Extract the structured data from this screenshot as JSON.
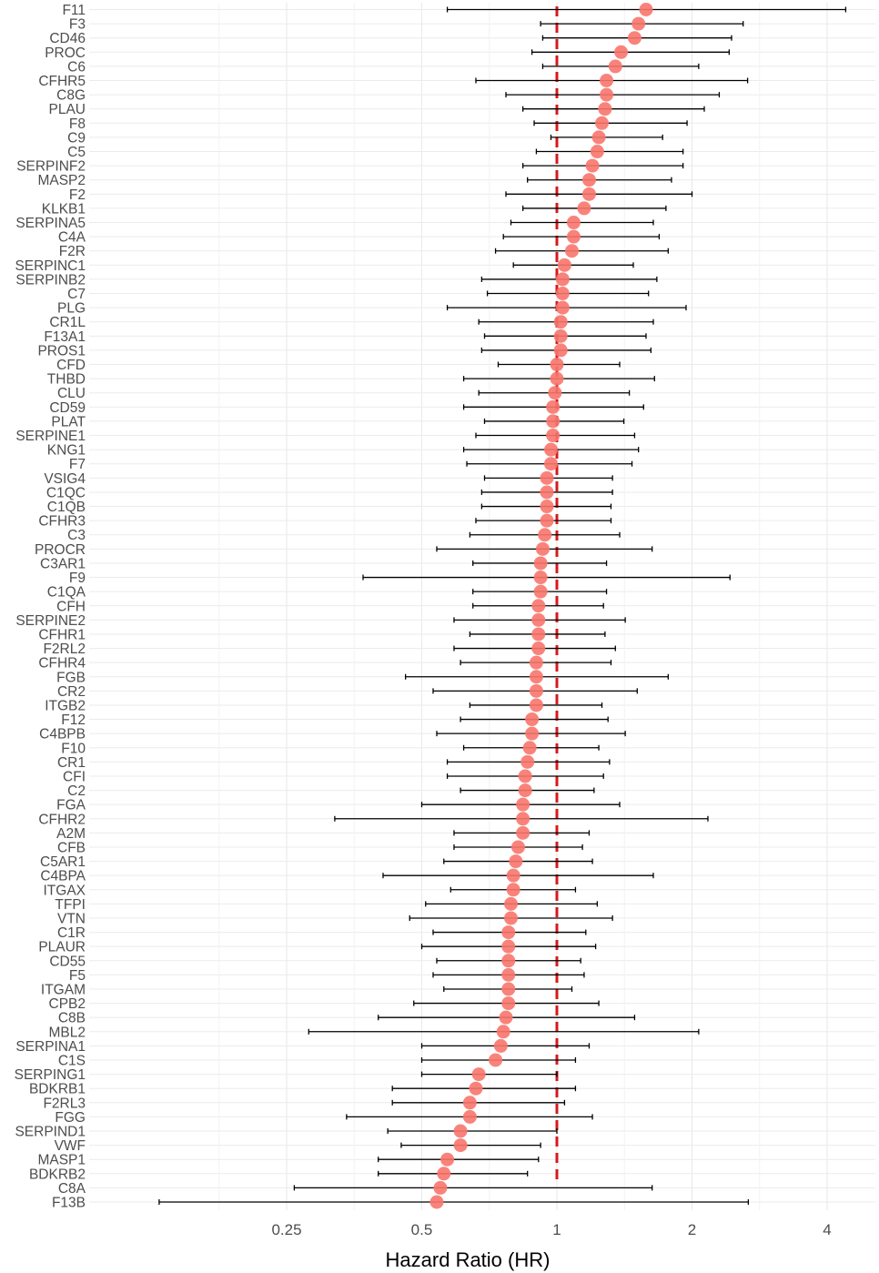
{
  "chart_data": {
    "type": "forest",
    "xlabel": "Hazard Ratio (HR)",
    "x_scale": "log2",
    "xlim": [
      0.11,
      5.2
    ],
    "x_ticks": [
      0.25,
      0.5,
      1,
      2,
      4
    ],
    "x_tick_labels": [
      "0.25",
      "0.5",
      "1",
      "2",
      "4"
    ],
    "reference_line": 1,
    "grid": true,
    "colors": {
      "point": "#F8766D",
      "reference": "#D7191C",
      "errorbar": "#000000",
      "grid": "#EBEBEB"
    },
    "rows": [
      {
        "label": "F11",
        "hr": 1.58,
        "lower": 0.57,
        "upper": 4.4
      },
      {
        "label": "F3",
        "hr": 1.52,
        "lower": 0.92,
        "upper": 2.6
      },
      {
        "label": "CD46",
        "hr": 1.49,
        "lower": 0.93,
        "upper": 2.45
      },
      {
        "label": "PROC",
        "hr": 1.39,
        "lower": 0.88,
        "upper": 2.42
      },
      {
        "label": "C6",
        "hr": 1.35,
        "lower": 0.93,
        "upper": 2.07
      },
      {
        "label": "CFHR5",
        "hr": 1.29,
        "lower": 0.66,
        "upper": 2.66
      },
      {
        "label": "C8G",
        "hr": 1.29,
        "lower": 0.77,
        "upper": 2.3
      },
      {
        "label": "PLAU",
        "hr": 1.28,
        "lower": 0.84,
        "upper": 2.13
      },
      {
        "label": "F8",
        "hr": 1.26,
        "lower": 0.89,
        "upper": 1.95
      },
      {
        "label": "C9",
        "hr": 1.24,
        "lower": 0.97,
        "upper": 1.72
      },
      {
        "label": "C5",
        "hr": 1.23,
        "lower": 0.9,
        "upper": 1.91
      },
      {
        "label": "SERPINF2",
        "hr": 1.2,
        "lower": 0.84,
        "upper": 1.91
      },
      {
        "label": "MASP2",
        "hr": 1.18,
        "lower": 0.86,
        "upper": 1.8
      },
      {
        "label": "F2",
        "hr": 1.18,
        "lower": 0.77,
        "upper": 2.0
      },
      {
        "label": "KLKB1",
        "hr": 1.15,
        "lower": 0.84,
        "upper": 1.75
      },
      {
        "label": "SERPINA5",
        "hr": 1.09,
        "lower": 0.79,
        "upper": 1.64
      },
      {
        "label": "C4A",
        "hr": 1.09,
        "lower": 0.76,
        "upper": 1.69
      },
      {
        "label": "F2R",
        "hr": 1.08,
        "lower": 0.73,
        "upper": 1.77
      },
      {
        "label": "SERPINC1",
        "hr": 1.04,
        "lower": 0.8,
        "upper": 1.48
      },
      {
        "label": "SERPINB2",
        "hr": 1.03,
        "lower": 0.68,
        "upper": 1.67
      },
      {
        "label": "C7",
        "hr": 1.03,
        "lower": 0.7,
        "upper": 1.6
      },
      {
        "label": "PLG",
        "hr": 1.03,
        "lower": 0.57,
        "upper": 1.94
      },
      {
        "label": "CR1L",
        "hr": 1.02,
        "lower": 0.67,
        "upper": 1.64
      },
      {
        "label": "F13A1",
        "hr": 1.02,
        "lower": 0.69,
        "upper": 1.58
      },
      {
        "label": "PROS1",
        "hr": 1.02,
        "lower": 0.68,
        "upper": 1.62
      },
      {
        "label": "CFD",
        "hr": 1.0,
        "lower": 0.74,
        "upper": 1.38
      },
      {
        "label": "THBD",
        "hr": 1.0,
        "lower": 0.62,
        "upper": 1.65
      },
      {
        "label": "CLU",
        "hr": 0.99,
        "lower": 0.67,
        "upper": 1.45
      },
      {
        "label": "CD59",
        "hr": 0.98,
        "lower": 0.62,
        "upper": 1.56
      },
      {
        "label": "PLAT",
        "hr": 0.98,
        "lower": 0.69,
        "upper": 1.41
      },
      {
        "label": "SERPINE1",
        "hr": 0.98,
        "lower": 0.66,
        "upper": 1.49
      },
      {
        "label": "KNG1",
        "hr": 0.97,
        "lower": 0.62,
        "upper": 1.52
      },
      {
        "label": "F7",
        "hr": 0.97,
        "lower": 0.63,
        "upper": 1.47
      },
      {
        "label": "VSIG4",
        "hr": 0.95,
        "lower": 0.69,
        "upper": 1.33
      },
      {
        "label": "C1QC",
        "hr": 0.95,
        "lower": 0.68,
        "upper": 1.33
      },
      {
        "label": "C1QB",
        "hr": 0.95,
        "lower": 0.68,
        "upper": 1.32
      },
      {
        "label": "CFHR3",
        "hr": 0.95,
        "lower": 0.66,
        "upper": 1.32
      },
      {
        "label": "C3",
        "hr": 0.94,
        "lower": 0.64,
        "upper": 1.38
      },
      {
        "label": "PROCR",
        "hr": 0.93,
        "lower": 0.54,
        "upper": 1.63
      },
      {
        "label": "C3AR1",
        "hr": 0.92,
        "lower": 0.65,
        "upper": 1.29
      },
      {
        "label": "F9",
        "hr": 0.92,
        "lower": 0.37,
        "upper": 2.43
      },
      {
        "label": "C1QA",
        "hr": 0.92,
        "lower": 0.65,
        "upper": 1.29
      },
      {
        "label": "CFH",
        "hr": 0.91,
        "lower": 0.65,
        "upper": 1.27
      },
      {
        "label": "SERPINE2",
        "hr": 0.91,
        "lower": 0.59,
        "upper": 1.42
      },
      {
        "label": "CFHR1",
        "hr": 0.91,
        "lower": 0.64,
        "upper": 1.28
      },
      {
        "label": "F2RL2",
        "hr": 0.91,
        "lower": 0.59,
        "upper": 1.35
      },
      {
        "label": "CFHR4",
        "hr": 0.9,
        "lower": 0.61,
        "upper": 1.32
      },
      {
        "label": "FGB",
        "hr": 0.9,
        "lower": 0.46,
        "upper": 1.77
      },
      {
        "label": "CR2",
        "hr": 0.9,
        "lower": 0.53,
        "upper": 1.51
      },
      {
        "label": "ITGB2",
        "hr": 0.9,
        "lower": 0.64,
        "upper": 1.26
      },
      {
        "label": "F12",
        "hr": 0.88,
        "lower": 0.61,
        "upper": 1.3
      },
      {
        "label": "C4BPB",
        "hr": 0.88,
        "lower": 0.54,
        "upper": 1.42
      },
      {
        "label": "F10",
        "hr": 0.87,
        "lower": 0.62,
        "upper": 1.24
      },
      {
        "label": "CR1",
        "hr": 0.86,
        "lower": 0.57,
        "upper": 1.31
      },
      {
        "label": "CFI",
        "hr": 0.85,
        "lower": 0.57,
        "upper": 1.27
      },
      {
        "label": "C2",
        "hr": 0.85,
        "lower": 0.61,
        "upper": 1.21
      },
      {
        "label": "FGA",
        "hr": 0.84,
        "lower": 0.5,
        "upper": 1.38
      },
      {
        "label": "CFHR2",
        "hr": 0.84,
        "lower": 0.32,
        "upper": 2.17
      },
      {
        "label": "A2M",
        "hr": 0.84,
        "lower": 0.59,
        "upper": 1.18
      },
      {
        "label": "CFB",
        "hr": 0.82,
        "lower": 0.59,
        "upper": 1.14
      },
      {
        "label": "C5AR1",
        "hr": 0.81,
        "lower": 0.56,
        "upper": 1.2
      },
      {
        "label": "C4BPA",
        "hr": 0.8,
        "lower": 0.41,
        "upper": 1.64
      },
      {
        "label": "ITGAX",
        "hr": 0.8,
        "lower": 0.58,
        "upper": 1.1
      },
      {
        "label": "TFPI",
        "hr": 0.79,
        "lower": 0.51,
        "upper": 1.23
      },
      {
        "label": "VTN",
        "hr": 0.79,
        "lower": 0.47,
        "upper": 1.33
      },
      {
        "label": "C1R",
        "hr": 0.78,
        "lower": 0.53,
        "upper": 1.16
      },
      {
        "label": "PLAUR",
        "hr": 0.78,
        "lower": 0.5,
        "upper": 1.22
      },
      {
        "label": "CD55",
        "hr": 0.78,
        "lower": 0.54,
        "upper": 1.13
      },
      {
        "label": "F5",
        "hr": 0.78,
        "lower": 0.53,
        "upper": 1.15
      },
      {
        "label": "ITGAM",
        "hr": 0.78,
        "lower": 0.56,
        "upper": 1.08
      },
      {
        "label": "CPB2",
        "hr": 0.78,
        "lower": 0.48,
        "upper": 1.24
      },
      {
        "label": "C8B",
        "hr": 0.77,
        "lower": 0.4,
        "upper": 1.49
      },
      {
        "label": "MBL2",
        "hr": 0.76,
        "lower": 0.28,
        "upper": 2.07
      },
      {
        "label": "SERPINA1",
        "hr": 0.75,
        "lower": 0.5,
        "upper": 1.18
      },
      {
        "label": "C1S",
        "hr": 0.73,
        "lower": 0.5,
        "upper": 1.1
      },
      {
        "label": "SERPING1",
        "hr": 0.67,
        "lower": 0.5,
        "upper": 1.0
      },
      {
        "label": "BDKRB1",
        "hr": 0.66,
        "lower": 0.43,
        "upper": 1.1
      },
      {
        "label": "F2RL3",
        "hr": 0.64,
        "lower": 0.43,
        "upper": 1.04
      },
      {
        "label": "FGG",
        "hr": 0.64,
        "lower": 0.34,
        "upper": 1.2
      },
      {
        "label": "SERPIND1",
        "hr": 0.61,
        "lower": 0.42,
        "upper": 1.0
      },
      {
        "label": "VWF",
        "hr": 0.61,
        "lower": 0.45,
        "upper": 0.92
      },
      {
        "label": "MASP1",
        "hr": 0.57,
        "lower": 0.4,
        "upper": 0.91
      },
      {
        "label": "BDKRB2",
        "hr": 0.56,
        "lower": 0.4,
        "upper": 0.86
      },
      {
        "label": "C8A",
        "hr": 0.55,
        "lower": 0.26,
        "upper": 1.63
      },
      {
        "label": "F13B",
        "hr": 0.54,
        "lower": 0.13,
        "upper": 2.67
      }
    ]
  }
}
